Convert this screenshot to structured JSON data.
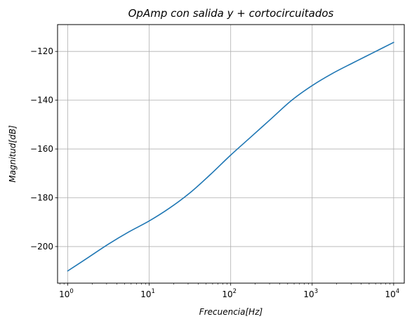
{
  "chart_data": {
    "type": "line",
    "title": "OpAmp con salida y + cortocircuitados",
    "xlabel": "Frecuencia[Hz]",
    "ylabel": "Magnitud[dB]",
    "xscale": "log",
    "xlim": [
      0.75,
      13500
    ],
    "ylim": [
      -215,
      -109
    ],
    "grid": true,
    "x_ticks": [
      {
        "value": 1,
        "base": "10",
        "exp": "0"
      },
      {
        "value": 10,
        "base": "10",
        "exp": "1"
      },
      {
        "value": 100,
        "base": "10",
        "exp": "2"
      },
      {
        "value": 1000,
        "base": "10",
        "exp": "3"
      },
      {
        "value": 10000,
        "base": "10",
        "exp": "4"
      }
    ],
    "y_ticks": [
      {
        "value": -120,
        "label": "−120"
      },
      {
        "value": -140,
        "label": "−140"
      },
      {
        "value": -160,
        "label": "−160"
      },
      {
        "value": -180,
        "label": "−180"
      },
      {
        "value": -200,
        "label": "−200"
      }
    ],
    "series": [
      {
        "color": "#1f77b4",
        "x": [
          1,
          1.78,
          3.16,
          5.62,
          10,
          17.8,
          31.6,
          56.2,
          100,
          178,
          316,
          562,
          1000,
          1780,
          3160,
          5620,
          10000
        ],
        "y": [
          -210.0,
          -204.5,
          -199.0,
          -194.0,
          -189.5,
          -184.2,
          -178.0,
          -170.5,
          -162.5,
          -155.0,
          -147.5,
          -140.0,
          -134.0,
          -129.0,
          -124.7,
          -120.5,
          -116.3
        ]
      }
    ]
  }
}
